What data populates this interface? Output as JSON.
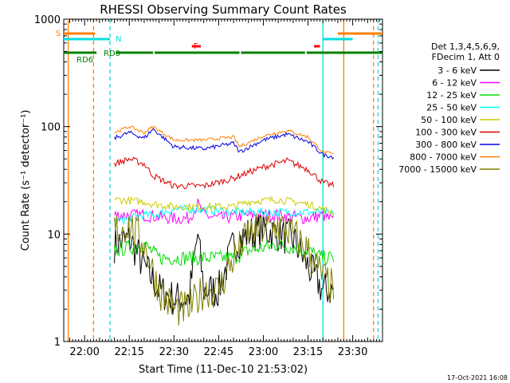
{
  "chart_data": {
    "type": "line",
    "title": "RHESSI Observing Summary Count Rates",
    "xlabel": "Start Time (11-Dec-10 21:53:02)",
    "ylabel": "Count Rate (s⁻¹ detector⁻¹)",
    "y_scale": "log",
    "ylim": [
      1,
      1000
    ],
    "y_ticks": [
      "1",
      "10",
      "100",
      "1000"
    ],
    "x_ticks": [
      "22:00",
      "22:15",
      "22:30",
      "22:45",
      "23:00",
      "23:15",
      "23:30"
    ],
    "x_range_minutes": [
      -7,
      100
    ],
    "legend_header": [
      "Det 1,3,4,5,6,9,",
      "FDecim 1, Att 0"
    ],
    "legend_position": "right",
    "timestamp": "17-Oct-2021 16:08",
    "flags": [
      {
        "label": "S",
        "color": "#ff8000",
        "segments": [
          [
            -7,
            3.5
          ],
          [
            85,
            100
          ]
        ]
      },
      {
        "label": "N",
        "color": "#00e0e0",
        "segments": [
          [
            -7,
            8.5
          ],
          [
            80,
            90
          ]
        ]
      },
      {
        "label": "F",
        "color": "#ff0000",
        "segments": [
          [
            36,
            39
          ],
          [
            77,
            79
          ]
        ]
      },
      {
        "label": "RD6",
        "color": "#008000",
        "segments": [
          [
            -7,
            4
          ]
        ]
      },
      {
        "label": "RD0",
        "color": "#008000",
        "segments": [
          [
            10.5,
            23
          ],
          [
            23.5,
            52
          ],
          [
            52.5,
            74
          ],
          [
            74.5,
            100
          ]
        ]
      }
    ],
    "vlines": [
      {
        "t": -5.5,
        "color": "#ff8000",
        "dash": false
      },
      {
        "t": 3,
        "color": "#ff8000",
        "dash": true
      },
      {
        "t": 8.5,
        "color": "#00e0e0",
        "dash": true
      },
      {
        "t": 80,
        "color": "#00e0e0",
        "dash": false
      },
      {
        "t": 87,
        "color": "#ff8000",
        "dash": false
      },
      {
        "t": 97,
        "color": "#ff8000",
        "dash": true
      },
      {
        "t": 98.5,
        "color": "#00e0e0",
        "dash": true
      }
    ],
    "series": [
      {
        "name": "3 - 6 keV",
        "color": "#000000",
        "t": [
          10,
          15,
          20,
          25,
          30,
          35,
          38,
          40,
          45,
          50,
          55,
          60,
          65,
          70,
          75,
          80,
          84
        ],
        "values": [
          8,
          9,
          5,
          3,
          2.5,
          2.5,
          10,
          3,
          3,
          8,
          10,
          11,
          10,
          9,
          5,
          3,
          3
        ]
      },
      {
        "name": "6 - 12 keV",
        "color": "#ff00ff",
        "t": [
          10,
          20,
          30,
          35,
          38,
          40,
          45,
          55,
          65,
          75,
          80,
          84
        ],
        "values": [
          15,
          15,
          14,
          14,
          19,
          15,
          14,
          15,
          15,
          14,
          15,
          13
        ]
      },
      {
        "name": "12 - 25 keV",
        "color": "#00dd00",
        "t": [
          10,
          20,
          25,
          35,
          45,
          50,
          55,
          65,
          75,
          80,
          84
        ],
        "values": [
          7,
          8,
          6,
          6,
          6,
          6,
          7,
          8,
          7,
          6,
          6
        ]
      },
      {
        "name": "25 - 50 keV",
        "color": "#00ffff",
        "t": [
          10,
          20,
          23,
          30,
          40,
          50,
          55,
          65,
          75,
          80,
          84
        ],
        "values": [
          13,
          15,
          15,
          17,
          17,
          16,
          16,
          16,
          16,
          16,
          15
        ]
      },
      {
        "name": "50 - 100 keV",
        "color": "#cccc00",
        "t": [
          10,
          20,
          23,
          30,
          40,
          50,
          55,
          65,
          75,
          80,
          84
        ],
        "values": [
          21,
          20,
          19,
          18,
          18,
          18,
          20,
          21,
          19,
          17,
          16
        ]
      },
      {
        "name": "100 - 300 keV",
        "color": "#dd0000",
        "t": [
          10,
          15,
          20,
          23,
          30,
          40,
          50,
          52,
          60,
          68,
          75,
          80,
          84
        ],
        "values": [
          45,
          50,
          45,
          35,
          28,
          28,
          33,
          35,
          42,
          48,
          40,
          30,
          28
        ]
      },
      {
        "name": "300 - 800 keV",
        "color": "#0000dd",
        "t": [
          10,
          15,
          20,
          23,
          30,
          40,
          50,
          52,
          60,
          68,
          75,
          80,
          84
        ],
        "values": [
          78,
          88,
          78,
          95,
          65,
          62,
          70,
          58,
          75,
          85,
          72,
          55,
          52
        ]
      },
      {
        "name": "800 - 7000 keV",
        "color": "#ff8000",
        "t": [
          10,
          15,
          20,
          23,
          30,
          40,
          50,
          52,
          60,
          68,
          75,
          80,
          84
        ],
        "values": [
          88,
          100,
          88,
          100,
          75,
          75,
          80,
          65,
          82,
          92,
          80,
          58,
          55
        ]
      },
      {
        "name": "7000 - 15000 keV",
        "color": "#808000",
        "t": [
          10,
          15,
          20,
          25,
          30,
          35,
          40,
          45,
          50,
          55,
          60,
          65,
          70,
          75,
          80,
          84
        ],
        "values": [
          11,
          12,
          8,
          3,
          2,
          2,
          3,
          3,
          6,
          10,
          11,
          12,
          10,
          7,
          4,
          3
        ]
      }
    ]
  }
}
